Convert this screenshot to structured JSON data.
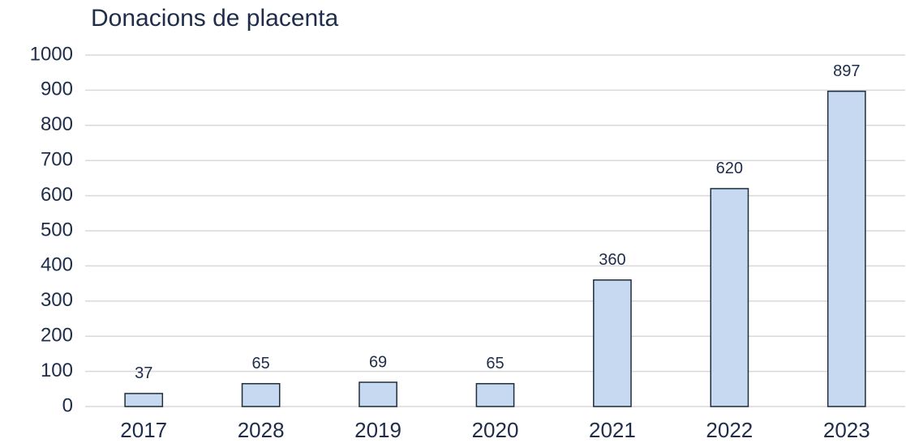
{
  "chart_data": {
    "type": "bar",
    "title": "Donacions de placenta",
    "categories": [
      "2017",
      "2028",
      "2019",
      "2020",
      "2021",
      "2022",
      "2023"
    ],
    "values": [
      37,
      65,
      69,
      65,
      360,
      620,
      897
    ],
    "color": "#c6d9f1",
    "ylim": [
      0,
      1000
    ],
    "yticks": [
      0,
      100,
      200,
      300,
      400,
      500,
      600,
      700,
      800,
      900,
      1000
    ],
    "grid": true
  }
}
